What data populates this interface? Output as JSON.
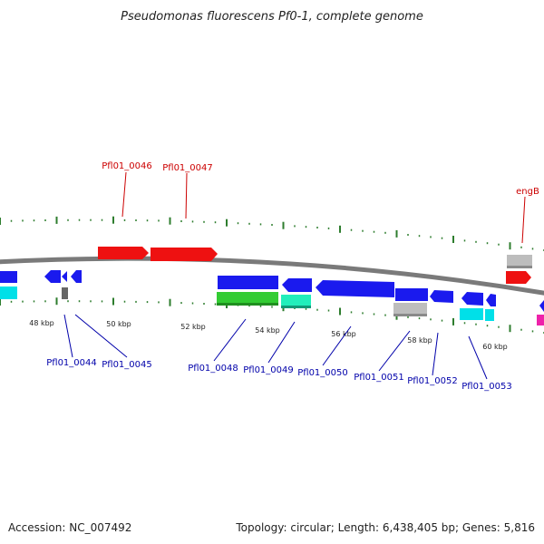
{
  "title": "Pseudomonas fluorescens Pf0-1, complete genome",
  "footer": {
    "accession": "Accession: NC_007492",
    "summary": "Topology: circular; Length: 6,438,405 bp; Genes: 5,816"
  },
  "scale": {
    "ticks": [
      "48 kbp",
      "50 kbp",
      "52 kbp",
      "54 kbp",
      "56 kbp",
      "58 kbp",
      "60 kbp"
    ]
  },
  "colors": {
    "backbone": "#7a7a7a",
    "tick": "#2e7d2e",
    "forward_label": "#cc0000",
    "reverse_label": "#0000aa",
    "red": "#ee1111",
    "blue": "#1a1aee",
    "cyan": "#00e0e8",
    "green": "#33cc33",
    "mint": "#22eebb",
    "gray": "#bdbdbd",
    "darkgray": "#666666",
    "magenta": "#ee22aa"
  },
  "gene_labels": {
    "forward": [
      "Pfl01_0046",
      "Pfl01_0047",
      "engB"
    ],
    "reverse": [
      "Pfl01_0044",
      "Pfl01_0045",
      "Pfl01_0048",
      "Pfl01_0049",
      "Pfl01_0050",
      "Pfl01_0051",
      "Pfl01_0052",
      "Pfl01_0053"
    ]
  }
}
